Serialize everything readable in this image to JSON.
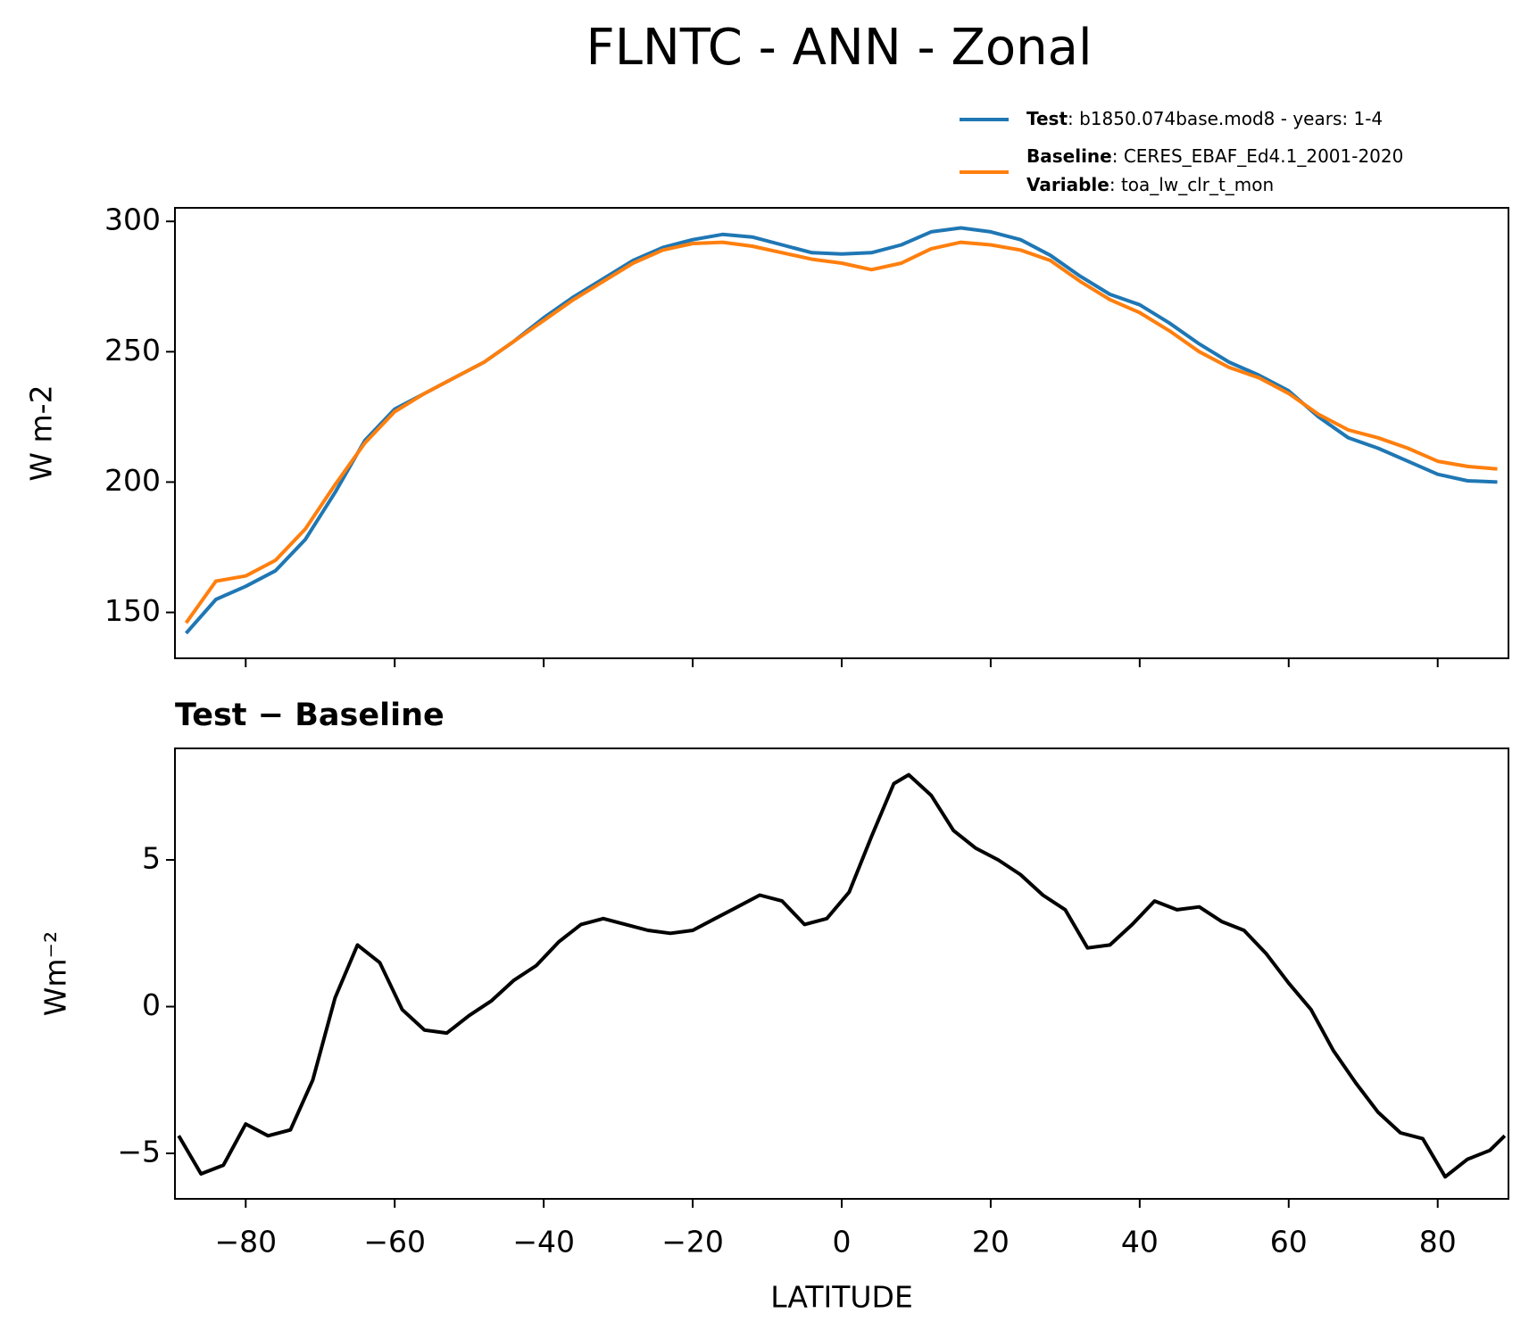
{
  "title": "FLNTC - ANN - Zonal",
  "chart_data": [
    {
      "type": "line",
      "ylabel": "W m-2",
      "x": [
        -88,
        -84,
        -80,
        -76,
        -72,
        -68,
        -64,
        -60,
        -56,
        -52,
        -48,
        -44,
        -40,
        -36,
        -32,
        -28,
        -24,
        -20,
        -16,
        -12,
        -8,
        -4,
        0,
        4,
        8,
        12,
        16,
        20,
        24,
        28,
        32,
        36,
        40,
        44,
        48,
        52,
        56,
        60,
        64,
        68,
        72,
        76,
        80,
        84,
        88
      ],
      "series": [
        {
          "name": "Test",
          "legend_text": ": b1850.074base.mod8 - years: 1-4",
          "color": "#1f77b4",
          "values": [
            142,
            155,
            160,
            166,
            178,
            196,
            216,
            228,
            234,
            240,
            246,
            254,
            263,
            271,
            278,
            285,
            290,
            293,
            295,
            294,
            291,
            288,
            287.5,
            288,
            291,
            296,
            297.5,
            296,
            293,
            287,
            279,
            272,
            268,
            261,
            253,
            246,
            241,
            235,
            225,
            217,
            213,
            208,
            203,
            200.5,
            200
          ]
        },
        {
          "name": "Baseline",
          "legend_text": ": CERES_EBAF_Ed4.1_2001-2020",
          "extra_name": "Variable",
          "extra_text": ": toa_lw_clr_t_mon",
          "color": "#ff7f0e",
          "values": [
            146,
            162,
            164,
            170,
            182,
            199,
            215,
            227,
            234,
            240,
            246,
            254,
            262,
            270,
            277,
            284,
            289,
            291.5,
            292,
            290.5,
            288,
            285.5,
            284,
            281.5,
            284,
            289.5,
            292,
            291,
            289,
            285,
            277,
            270,
            265,
            258,
            250,
            244,
            240,
            234,
            226,
            220,
            217,
            213,
            208,
            206,
            205
          ]
        }
      ],
      "xlim": [
        -89.5,
        89.5
      ],
      "ylim": [
        132.4,
        305.2
      ],
      "yticks": [
        150,
        200,
        250,
        300
      ]
    },
    {
      "type": "line",
      "title": "Test − Baseline",
      "ylabel": "Wm⁻²",
      "xlabel": "LATITUDE",
      "x": [
        -89,
        -86,
        -83,
        -80,
        -77,
        -74,
        -71,
        -68,
        -65,
        -62,
        -59,
        -56,
        -53,
        -50,
        -47,
        -44,
        -41,
        -38,
        -35,
        -32,
        -29,
        -26,
        -23,
        -20,
        -17,
        -14,
        -11,
        -8,
        -5,
        -2,
        1,
        4,
        7,
        9,
        12,
        15,
        18,
        21,
        24,
        27,
        30,
        33,
        36,
        39,
        42,
        45,
        48,
        51,
        54,
        57,
        60,
        63,
        66,
        69,
        72,
        75,
        78,
        81,
        84,
        87,
        89
      ],
      "series": [
        {
          "color": "#000000",
          "values": [
            -4.4,
            -5.7,
            -5.4,
            -4.0,
            -4.4,
            -4.2,
            -2.5,
            0.3,
            2.1,
            1.5,
            -0.1,
            -0.8,
            -0.9,
            -0.3,
            0.2,
            0.9,
            1.4,
            2.2,
            2.8,
            3.0,
            2.8,
            2.6,
            2.5,
            2.6,
            3.0,
            3.4,
            3.8,
            3.6,
            2.8,
            3.0,
            3.9,
            5.8,
            7.6,
            7.9,
            7.2,
            6.0,
            5.4,
            5.0,
            4.5,
            3.8,
            3.3,
            2.0,
            2.1,
            2.8,
            3.6,
            3.3,
            3.4,
            2.9,
            2.6,
            1.8,
            0.8,
            -0.1,
            -1.5,
            -2.6,
            -3.6,
            -4.3,
            -4.5,
            -5.8,
            -5.2,
            -4.9,
            -4.4
          ]
        }
      ],
      "xlim": [
        -89.5,
        89.5
      ],
      "ylim": [
        -6.55,
        8.8
      ],
      "xticks": [
        {
          "value": -80,
          "label": "−80"
        },
        {
          "value": -60,
          "label": "−60"
        },
        {
          "value": -40,
          "label": "−40"
        },
        {
          "value": -20,
          "label": "−20"
        },
        0,
        20,
        40,
        60,
        80
      ],
      "yticks": [
        {
          "value": -5,
          "label": "−5"
        },
        0,
        5
      ]
    }
  ]
}
